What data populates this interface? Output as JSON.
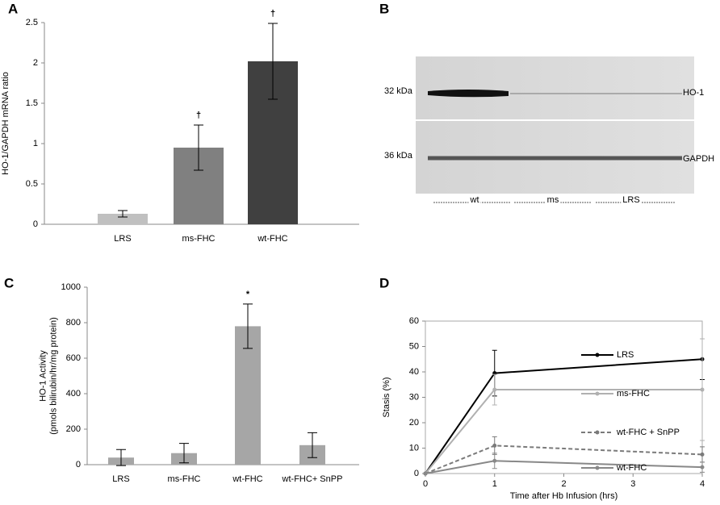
{
  "chart_data": [
    {
      "type": "bar",
      "panel": "A",
      "ylabel": [
        "HO-1/GAPDH mRNA ratio"
      ],
      "categories": [
        "LRS",
        "ms-FHC",
        "wt-FHC"
      ],
      "values": [
        0.13,
        0.95,
        2.02
      ],
      "errors": [
        0.04,
        0.28,
        0.47
      ],
      "colors": [
        "#c0c0c0",
        "#808080",
        "#404040"
      ],
      "annotations": [
        null,
        "†",
        "†"
      ],
      "ylim": [
        0,
        2.5
      ],
      "yticks": [
        0,
        0.5,
        1,
        1.5,
        2,
        2.5
      ]
    },
    {
      "type": "blot",
      "panel": "B",
      "markers": [
        "32 kDa",
        "36 kDa"
      ],
      "bands": [
        "HO-1",
        "GAPDH"
      ],
      "lane_groups": [
        "wt",
        "ms",
        "LRS"
      ]
    },
    {
      "type": "bar",
      "panel": "C",
      "ylabel": [
        "HO-1 Activity",
        "(pmols bilirubin/hr/mg protein)"
      ],
      "categories": [
        "LRS",
        "ms-FHC",
        "wt-FHC",
        "wt-FHC+ SnPP"
      ],
      "values": [
        40,
        65,
        780,
        110
      ],
      "errors": [
        45,
        55,
        125,
        70
      ],
      "colors": [
        "#a6a6a6",
        "#a6a6a6",
        "#a6a6a6",
        "#a6a6a6"
      ],
      "annotations": [
        null,
        null,
        "*",
        null
      ],
      "ylim": [
        0,
        1000
      ],
      "yticks": [
        0,
        200,
        400,
        600,
        800,
        1000
      ]
    },
    {
      "type": "line",
      "panel": "D",
      "xlabel": "Time after Hb Infusion (hrs)",
      "ylabel": [
        "Stasis (%)"
      ],
      "x": [
        0,
        1,
        4
      ],
      "xlim": [
        0,
        4
      ],
      "xticks": [
        0,
        1,
        2,
        3,
        4
      ],
      "ylim": [
        0,
        60
      ],
      "yticks": [
        0,
        10,
        20,
        30,
        40,
        50,
        60
      ],
      "legend": "inline",
      "series": [
        {
          "name": "LRS",
          "color": "#000000",
          "values": [
            0,
            39.5,
            45
          ],
          "errors": [
            null,
            9,
            8
          ]
        },
        {
          "name": "ms-FHC",
          "color": "#b0b0b0",
          "values": [
            0,
            33,
            33
          ],
          "errors": [
            null,
            6,
            20
          ]
        },
        {
          "name": "wt-FHC + SnPP",
          "color": "#7a7a7a",
          "dashed": true,
          "values": [
            0,
            11,
            7.5
          ],
          "errors": [
            null,
            3.5,
            3
          ]
        },
        {
          "name": "wt-FHC",
          "color": "#888888",
          "values": [
            0,
            5,
            2.5
          ],
          "errors": [
            null,
            3,
            2
          ]
        }
      ]
    }
  ]
}
